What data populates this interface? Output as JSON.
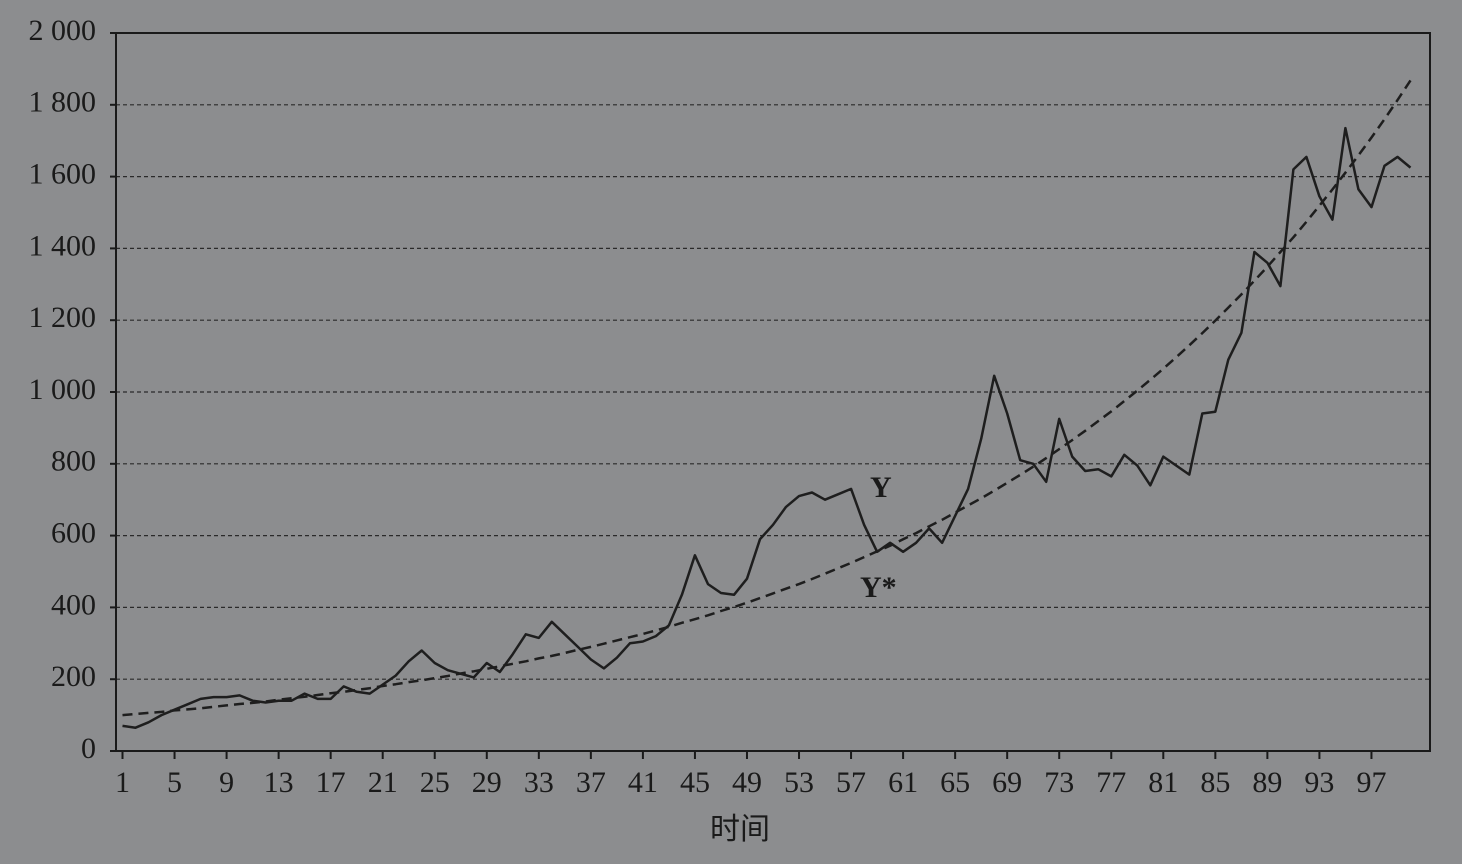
{
  "chart_data": {
    "type": "line",
    "x": [
      1,
      2,
      3,
      4,
      5,
      6,
      7,
      8,
      9,
      10,
      11,
      12,
      13,
      14,
      15,
      16,
      17,
      18,
      19,
      20,
      21,
      22,
      23,
      24,
      25,
      26,
      27,
      28,
      29,
      30,
      31,
      32,
      33,
      34,
      35,
      36,
      37,
      38,
      39,
      40,
      41,
      42,
      43,
      44,
      45,
      46,
      47,
      48,
      49,
      50,
      51,
      52,
      53,
      54,
      55,
      56,
      57,
      58,
      59,
      60,
      61,
      62,
      63,
      64,
      65,
      66,
      67,
      68,
      69,
      70,
      71,
      72,
      73,
      74,
      75,
      76,
      77,
      78,
      79,
      80,
      81,
      82,
      83,
      84,
      85,
      86,
      87,
      88,
      89,
      90,
      91,
      92,
      93,
      94,
      95,
      96,
      97,
      98,
      99,
      100
    ],
    "series": [
      {
        "name": "Y",
        "color": "#1e1e1e",
        "dash": false,
        "values": [
          70,
          65,
          80,
          100,
          115,
          130,
          145,
          150,
          150,
          155,
          140,
          135,
          140,
          140,
          160,
          145,
          145,
          180,
          165,
          160,
          185,
          210,
          250,
          280,
          245,
          225,
          215,
          205,
          245,
          220,
          270,
          325,
          315,
          360,
          325,
          290,
          255,
          230,
          260,
          300,
          305,
          320,
          350,
          435,
          545,
          465,
          440,
          435,
          480,
          590,
          630,
          680,
          710,
          720,
          700,
          715,
          730,
          630,
          555,
          580,
          555,
          580,
          620,
          580,
          655,
          730,
          870,
          1045,
          940,
          810,
          800,
          750,
          925,
          820,
          780,
          785,
          765,
          825,
          795,
          740,
          820,
          795,
          770,
          940,
          945,
          1090,
          1165,
          1390,
          1360,
          1295,
          1620,
          1655,
          1545,
          1480,
          1735,
          1565,
          1515,
          1630,
          1655,
          1625
        ]
      },
      {
        "name": "Y*",
        "color": "#1e1e1e",
        "dash": true,
        "values": [
          100,
          103,
          106,
          109,
          113,
          116,
          119,
          123,
          127,
          131,
          134,
          138,
          143,
          147,
          151,
          156,
          161,
          165,
          170,
          175,
          181,
          186,
          192,
          197,
          203,
          209,
          216,
          222,
          229,
          236,
          243,
          250,
          258,
          265,
          273,
          282,
          290,
          299,
          308,
          317,
          326,
          336,
          346,
          357,
          367,
          378,
          390,
          401,
          413,
          426,
          439,
          452,
          465,
          479,
          494,
          509,
          524,
          540,
          556,
          572,
          590,
          607,
          626,
          644,
          664,
          684,
          704,
          725,
          747,
          769,
          792,
          816,
          841,
          866,
          892,
          919,
          946,
          975,
          1004,
          1034,
          1065,
          1097,
          1130,
          1164,
          1199,
          1235,
          1272,
          1310,
          1349,
          1390,
          1431,
          1474,
          1519,
          1564,
          1611,
          1659,
          1709,
          1760,
          1813,
          1868
        ]
      }
    ],
    "annotations": [
      "Y",
      "Y*"
    ],
    "xlabel": "时间",
    "xlim": [
      0.5,
      101.5
    ],
    "xticks": [
      1,
      5,
      9,
      13,
      17,
      21,
      25,
      29,
      33,
      37,
      41,
      45,
      49,
      53,
      57,
      61,
      65,
      69,
      73,
      77,
      81,
      85,
      89,
      93,
      97
    ],
    "ylim": [
      0,
      2000
    ],
    "yticks": [
      0,
      200,
      400,
      600,
      800,
      {
        "value": 1000,
        "label": "1 000"
      },
      {
        "value": 1200,
        "label": "1 200"
      },
      {
        "value": 1400,
        "label": "1 400"
      },
      {
        "value": 1600,
        "label": "1 600"
      },
      {
        "value": 1800,
        "label": "1 800"
      },
      {
        "value": 2000,
        "label": "2 000"
      }
    ],
    "grid": true
  }
}
